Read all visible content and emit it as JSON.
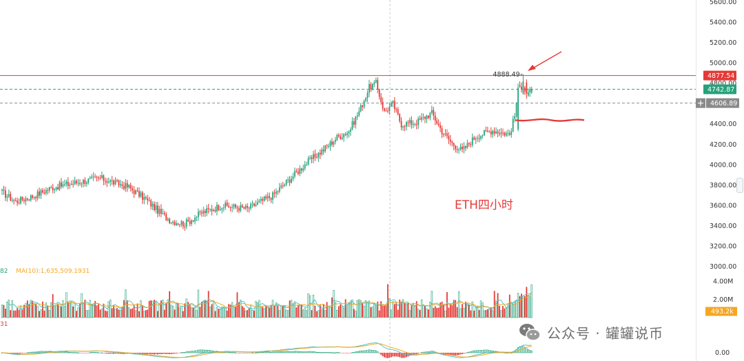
{
  "chart_data": {
    "type": "candlestick",
    "symbol": "ETH",
    "price_axis": {
      "ticks": [
        "5600.00",
        "5400.00",
        "5200.00",
        "5000.00",
        "4800.00",
        "4600.00",
        "4400.00",
        "4200.00",
        "4000.00",
        "3800.00",
        "3600.00",
        "3400.00",
        "3200.00",
        "3000.00"
      ],
      "values": [
        5600,
        5400,
        5200,
        5000,
        4800,
        4600,
        4400,
        4200,
        4000,
        3800,
        3600,
        3400,
        3200,
        3000
      ],
      "range": [
        2980,
        5620
      ]
    },
    "price_markers": [
      {
        "label": "4877.54",
        "value": 4877.54,
        "color": "#e53935",
        "line": "solid"
      },
      {
        "label": "4742.87",
        "value": 4742.87,
        "color": "#26a17b",
        "line": "dashed"
      },
      {
        "label": "4606.89",
        "value": 4606.89,
        "color": "#8a8a8a",
        "line": "dashed"
      }
    ],
    "high_label": {
      "text": "4888.49",
      "value": 4888.49
    },
    "support_level": 4440,
    "waypoints": [
      [
        0,
        3730
      ],
      [
        8,
        3640
      ],
      [
        18,
        3690
      ],
      [
        30,
        3780
      ],
      [
        45,
        3830
      ],
      [
        58,
        3870
      ],
      [
        75,
        3780
      ],
      [
        85,
        3660
      ],
      [
        94,
        3520
      ],
      [
        100,
        3450
      ],
      [
        108,
        3420
      ],
      [
        118,
        3530
      ],
      [
        130,
        3600
      ],
      [
        145,
        3570
      ],
      [
        160,
        3700
      ],
      [
        170,
        3860
      ],
      [
        180,
        4020
      ],
      [
        190,
        4150
      ],
      [
        198,
        4270
      ],
      [
        205,
        4330
      ],
      [
        212,
        4560
      ],
      [
        217,
        4760
      ],
      [
        221,
        4800
      ],
      [
        226,
        4520
      ],
      [
        231,
        4600
      ],
      [
        236,
        4400
      ],
      [
        245,
        4420
      ],
      [
        254,
        4510
      ],
      [
        260,
        4330
      ],
      [
        266,
        4210
      ],
      [
        272,
        4140
      ],
      [
        280,
        4280
      ],
      [
        290,
        4340
      ],
      [
        300,
        4300
      ],
      [
        303,
        4480
      ],
      [
        305,
        4750
      ],
      [
        308,
        4790
      ],
      [
        310,
        4690
      ],
      [
        313,
        4730
      ]
    ],
    "volume_axis": {
      "ticks": [
        "4.00M",
        "2.00M"
      ],
      "values": [
        4000000,
        2000000
      ]
    },
    "volume_marker": {
      "label": "493.2k",
      "value": 493200,
      "color": "#f5a623"
    },
    "volume_legend": [
      {
        "text": "82",
        "color": "#26a17b"
      },
      {
        "text": "MA(10):1,635,509.1931",
        "color": "#f5a623"
      }
    ],
    "macd_legend": [
      {
        "text": "31",
        "color": "#e53935"
      }
    ],
    "macd_axis": {
      "ticks": [
        "0.00"
      ],
      "values": [
        0
      ]
    }
  },
  "annotation": "ETH四小时",
  "watermark": "公众号 · 罐罐说币",
  "icons": {
    "crosshair": "plus-icon",
    "watermark": "wechat-icon"
  }
}
